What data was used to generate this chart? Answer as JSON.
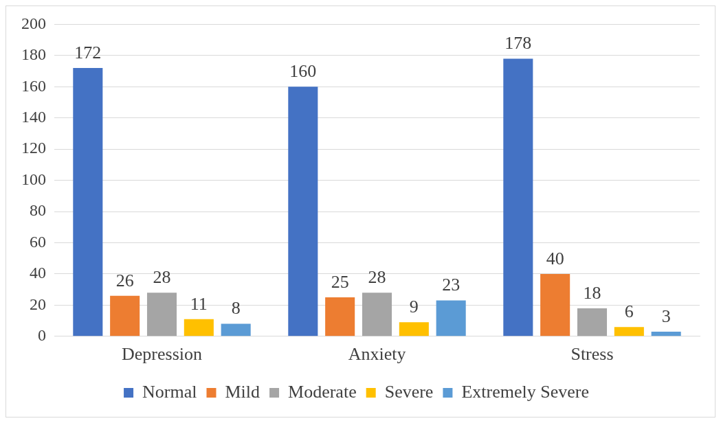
{
  "chart_data": {
    "type": "bar",
    "categories": [
      "Depression",
      "Anxiety",
      "Stress"
    ],
    "series": [
      {
        "name": "Normal",
        "color": "#4472c4",
        "values": [
          172,
          160,
          178
        ]
      },
      {
        "name": "Mild",
        "color": "#ed7d31",
        "values": [
          26,
          25,
          40
        ]
      },
      {
        "name": "Moderate",
        "color": "#a5a5a5",
        "values": [
          28,
          28,
          18
        ]
      },
      {
        "name": "Severe",
        "color": "#ffc000",
        "values": [
          11,
          9,
          6
        ]
      },
      {
        "name": "Extremely Severe",
        "color": "#5b9bd5",
        "values": [
          8,
          23,
          3
        ]
      }
    ],
    "ylim": [
      0,
      200
    ],
    "yticks": [
      0,
      20,
      40,
      60,
      80,
      100,
      120,
      140,
      160,
      180,
      200
    ],
    "grid": "y",
    "legend": "bottom",
    "data_labels": true
  }
}
